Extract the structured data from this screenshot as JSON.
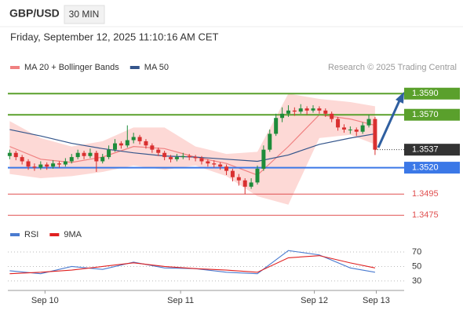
{
  "header": {
    "symbol": "GBP/USD",
    "timeframe": "30 MIN",
    "timestamp": "Friday, September 12, 2025 11:10:16 AM CET",
    "credit": "Research © 2025 Trading Central"
  },
  "chart_data": [
    {
      "type": "candlestick",
      "up_color": "#1e8c3a",
      "down_color": "#d93030",
      "xlim": [
        -0.3,
        63.7
      ],
      "ylim": [
        1.3467,
        1.3608
      ],
      "x": [
        0,
        1,
        2,
        3,
        4,
        5,
        6,
        7,
        8,
        9,
        10,
        11,
        12,
        13,
        14,
        15,
        16,
        17,
        18,
        19,
        20,
        21,
        22,
        23,
        24,
        25,
        26,
        27,
        28,
        29,
        30,
        31,
        32,
        33,
        34,
        35,
        36,
        37,
        38,
        39,
        40,
        41,
        42,
        43,
        44,
        45,
        46,
        47,
        48,
        49,
        50,
        51,
        52,
        53,
        54,
        55,
        56,
        57,
        58,
        59
      ],
      "candles": [
        [
          1.3531,
          1.3537,
          1.3528,
          1.3534
        ],
        [
          1.3534,
          1.3536,
          1.3527,
          1.353
        ],
        [
          1.353,
          1.3532,
          1.3523,
          1.3526
        ],
        [
          1.3526,
          1.3528,
          1.3518,
          1.3521
        ],
        [
          1.3521,
          1.3524,
          1.3517,
          1.352
        ],
        [
          1.352,
          1.3526,
          1.3518,
          1.3523
        ],
        [
          1.3523,
          1.3525,
          1.3518,
          1.3521
        ],
        [
          1.3521,
          1.3527,
          1.3519,
          1.3524
        ],
        [
          1.3524,
          1.3526,
          1.352,
          1.3523
        ],
        [
          1.3523,
          1.3529,
          1.3521,
          1.3526
        ],
        [
          1.3526,
          1.3533,
          1.3524,
          1.353
        ],
        [
          1.353,
          1.3537,
          1.3528,
          1.3534
        ],
        [
          1.3534,
          1.3536,
          1.3528,
          1.3531
        ],
        [
          1.3531,
          1.3538,
          1.3529,
          1.3534
        ],
        [
          1.3534,
          1.3536,
          1.3516,
          1.3526
        ],
        [
          1.3526,
          1.3533,
          1.3524,
          1.353
        ],
        [
          1.353,
          1.3541,
          1.3528,
          1.3537
        ],
        [
          1.3537,
          1.3547,
          1.3535,
          1.3543
        ],
        [
          1.3543,
          1.3545,
          1.3538,
          1.3541
        ],
        [
          1.3541,
          1.356,
          1.3539,
          1.3546
        ],
        [
          1.3546,
          1.3553,
          1.3543,
          1.3549
        ],
        [
          1.3549,
          1.3551,
          1.3542,
          1.3545
        ],
        [
          1.3545,
          1.3547,
          1.3538,
          1.3541
        ],
        [
          1.3541,
          1.3543,
          1.3534,
          1.3537
        ],
        [
          1.3537,
          1.3539,
          1.3531,
          1.3534
        ],
        [
          1.3534,
          1.3536,
          1.3527,
          1.353
        ],
        [
          1.353,
          1.3532,
          1.3525,
          1.3528
        ],
        [
          1.3528,
          1.3533,
          1.3526,
          1.353
        ],
        [
          1.353,
          1.3534,
          1.3528,
          1.3531
        ],
        [
          1.3531,
          1.3533,
          1.3527,
          1.353
        ],
        [
          1.353,
          1.3532,
          1.3526,
          1.3529
        ],
        [
          1.3529,
          1.3531,
          1.3523,
          1.3526
        ],
        [
          1.3526,
          1.3528,
          1.3521,
          1.3524
        ],
        [
          1.3524,
          1.3527,
          1.352,
          1.3523
        ],
        [
          1.3523,
          1.3525,
          1.3518,
          1.3521
        ],
        [
          1.3521,
          1.3523,
          1.3513,
          1.3517
        ],
        [
          1.3517,
          1.3519,
          1.3507,
          1.3511
        ],
        [
          1.3511,
          1.3514,
          1.3503,
          1.3508
        ],
        [
          1.3508,
          1.351,
          1.3495,
          1.3502
        ],
        [
          1.3502,
          1.351,
          1.35,
          1.3506
        ],
        [
          1.3506,
          1.3522,
          1.3504,
          1.3519
        ],
        [
          1.3519,
          1.3541,
          1.3517,
          1.3537
        ],
        [
          1.3537,
          1.3556,
          1.3535,
          1.3552
        ],
        [
          1.3552,
          1.3571,
          1.355,
          1.3567
        ],
        [
          1.3567,
          1.3577,
          1.3563,
          1.3571
        ],
        [
          1.3571,
          1.3579,
          1.3568,
          1.3574
        ],
        [
          1.3574,
          1.3577,
          1.3569,
          1.3573
        ],
        [
          1.3573,
          1.358,
          1.3571,
          1.3576
        ],
        [
          1.3576,
          1.3578,
          1.357,
          1.3574
        ],
        [
          1.3574,
          1.3579,
          1.3572,
          1.3576
        ],
        [
          1.3576,
          1.3578,
          1.3571,
          1.3574
        ],
        [
          1.3574,
          1.3576,
          1.3568,
          1.3571
        ],
        [
          1.3571,
          1.3573,
          1.3563,
          1.3566
        ],
        [
          1.3566,
          1.3568,
          1.3555,
          1.3558
        ],
        [
          1.3558,
          1.3561,
          1.3553,
          1.3556
        ],
        [
          1.3556,
          1.3559,
          1.3552,
          1.3556
        ],
        [
          1.3556,
          1.3558,
          1.355,
          1.3554
        ],
        [
          1.3554,
          1.3563,
          1.3552,
          1.356
        ],
        [
          1.356,
          1.357,
          1.3558,
          1.3566
        ],
        [
          1.3566,
          1.3568,
          1.3532,
          1.3537
        ]
      ],
      "overlays": [
        {
          "name": "MA 20 + Bollinger Bands",
          "color": "#f08080",
          "band_color": "#fdd9d6",
          "x": [
            0,
            5,
            10,
            15,
            20,
            25,
            30,
            35,
            40,
            45,
            50,
            55,
            59
          ],
          "values": [
            1.354,
            1.3528,
            1.3525,
            1.353,
            1.354,
            1.3538,
            1.353,
            1.3524,
            1.3513,
            1.354,
            1.357,
            1.3566,
            1.356
          ],
          "upper": [
            1.3564,
            1.3548,
            1.354,
            1.3545,
            1.3558,
            1.3558,
            1.354,
            1.3533,
            1.3535,
            1.359,
            1.3585,
            1.3582,
            1.3578
          ],
          "lower": [
            1.3514,
            1.351,
            1.3512,
            1.3516,
            1.3522,
            1.3518,
            1.3522,
            1.3512,
            1.3493,
            1.3485,
            1.3548,
            1.3551,
            1.3542
          ]
        },
        {
          "name": "MA 50",
          "color": "#34558b",
          "x": [
            0,
            5,
            10,
            15,
            20,
            25,
            30,
            35,
            40,
            45,
            50,
            55,
            59
          ],
          "values": [
            1.3556,
            1.355,
            1.3543,
            1.3538,
            1.3534,
            1.3531,
            1.353,
            1.3528,
            1.3526,
            1.3532,
            1.3542,
            1.3548,
            1.3552
          ]
        }
      ],
      "levels": [
        {
          "value": 1.359,
          "label": "1.3590",
          "color": "#5aa02c",
          "boxed": true
        },
        {
          "value": 1.357,
          "label": "1.3570",
          "color": "#5aa02c",
          "boxed": true
        },
        {
          "value": 1.3537,
          "label": "1.3537",
          "color": "#333333",
          "boxed": true,
          "current": true
        },
        {
          "value": 1.352,
          "label": "1.3520",
          "color": "#3b78e7",
          "boxed": true
        },
        {
          "value": 1.3495,
          "label": "1.3495",
          "color": "#e05050",
          "boxed": false
        },
        {
          "value": 1.3475,
          "label": "1.3475",
          "color": "#e05050",
          "boxed": false
        }
      ]
    },
    {
      "type": "line",
      "xlim": [
        -0.3,
        63.7
      ],
      "ylim": [
        19,
        82
      ],
      "yticks": [
        70,
        50,
        30
      ],
      "grid": true,
      "xticks": [
        {
          "value": 5.7,
          "label": "Sep 10"
        },
        {
          "value": 27.6,
          "label": "Sep 11"
        },
        {
          "value": 49.2,
          "label": "Sep 12"
        },
        {
          "value": 59.2,
          "label": "Sep 13"
        }
      ],
      "series": [
        {
          "name": "RSI",
          "color": "#4a7bd0",
          "x": [
            0,
            5,
            10,
            15,
            20,
            25,
            30,
            35,
            40,
            45,
            50,
            55,
            59
          ],
          "values": [
            44,
            40,
            50,
            46,
            56,
            48,
            47,
            42,
            40,
            72,
            66,
            48,
            42
          ]
        },
        {
          "name": "9MA",
          "color": "#e02020",
          "x": [
            0,
            5,
            10,
            15,
            20,
            25,
            30,
            35,
            40,
            45,
            50,
            55,
            59
          ],
          "values": [
            40,
            42,
            45,
            50,
            55,
            50,
            47,
            45,
            42,
            62,
            65,
            55,
            48
          ]
        }
      ]
    }
  ]
}
